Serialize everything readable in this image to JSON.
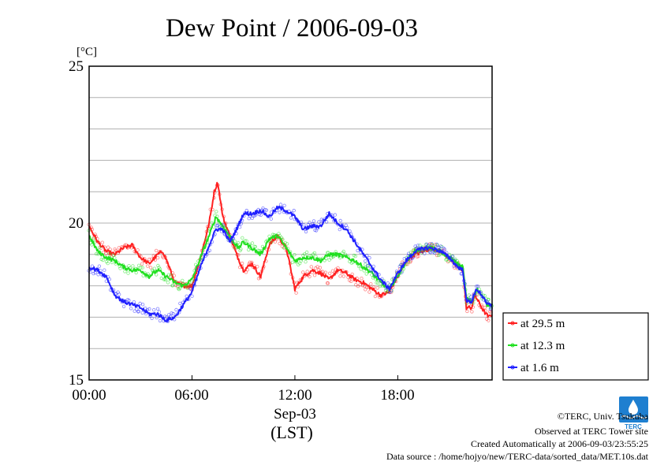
{
  "chart_data": {
    "type": "line",
    "title": "Dew Point / 2006-09-03",
    "unit": "[°C]",
    "y_ticks": [
      "25",
      "20",
      "15"
    ],
    "x_ticks": [
      "00:00",
      "06:00",
      "12:00",
      "18:00"
    ],
    "x_date": "Sep-03",
    "x_zone": "(LST)",
    "ylim": [
      15,
      25
    ],
    "xlim_hours": [
      0,
      23.5
    ],
    "grid": true,
    "legend_position": "right",
    "series": [
      {
        "name": "at 29.5 m",
        "color": "#ff2020",
        "points": [
          [
            0,
            19.9
          ],
          [
            0.5,
            19.4
          ],
          [
            1,
            19.1
          ],
          [
            1.5,
            19.0
          ],
          [
            2,
            19.2
          ],
          [
            2.5,
            19.3
          ],
          [
            3,
            18.9
          ],
          [
            3.5,
            18.7
          ],
          [
            4,
            19.0
          ],
          [
            4.3,
            19.1
          ],
          [
            4.6,
            18.7
          ],
          [
            5,
            18.1
          ],
          [
            5.5,
            18.0
          ],
          [
            6,
            18.0
          ],
          [
            6.5,
            18.9
          ],
          [
            7,
            20.0
          ],
          [
            7.3,
            21.0
          ],
          [
            7.5,
            21.3
          ],
          [
            7.8,
            20.2
          ],
          [
            8.2,
            19.6
          ],
          [
            8.6,
            19.0
          ],
          [
            9,
            18.5
          ],
          [
            9.5,
            18.7
          ],
          [
            10,
            18.3
          ],
          [
            10.5,
            19.3
          ],
          [
            11,
            19.6
          ],
          [
            11.5,
            19.2
          ],
          [
            12,
            17.9
          ],
          [
            12.5,
            18.3
          ],
          [
            13,
            18.5
          ],
          [
            13.5,
            18.4
          ],
          [
            14,
            18.2
          ],
          [
            14.5,
            18.5
          ],
          [
            15,
            18.4
          ],
          [
            15.5,
            18.2
          ],
          [
            16,
            18.1
          ],
          [
            16.5,
            17.9
          ],
          [
            17,
            17.7
          ],
          [
            17.5,
            17.8
          ],
          [
            18,
            18.3
          ],
          [
            18.5,
            18.8
          ],
          [
            19,
            19.0
          ],
          [
            19.5,
            19.1
          ],
          [
            20,
            19.2
          ],
          [
            20.5,
            19.1
          ],
          [
            21,
            18.9
          ],
          [
            21.5,
            18.6
          ],
          [
            21.8,
            18.5
          ],
          [
            22,
            17.3
          ],
          [
            22.3,
            17.3
          ],
          [
            22.5,
            17.7
          ],
          [
            22.8,
            17.4
          ],
          [
            23,
            17.2
          ],
          [
            23.3,
            17.0
          ],
          [
            23.5,
            17.1
          ]
        ]
      },
      {
        "name": "at 12.3 m",
        "color": "#20e020",
        "points": [
          [
            0,
            19.6
          ],
          [
            0.5,
            19.1
          ],
          [
            1,
            18.9
          ],
          [
            1.5,
            18.8
          ],
          [
            2,
            18.6
          ],
          [
            2.5,
            18.5
          ],
          [
            3,
            18.5
          ],
          [
            3.5,
            18.3
          ],
          [
            4,
            18.5
          ],
          [
            4.5,
            18.3
          ],
          [
            5,
            18.1
          ],
          [
            5.5,
            18.0
          ],
          [
            6,
            18.2
          ],
          [
            6.5,
            18.9
          ],
          [
            7,
            19.6
          ],
          [
            7.4,
            20.2
          ],
          [
            7.8,
            19.9
          ],
          [
            8.3,
            19.5
          ],
          [
            8.7,
            19.2
          ],
          [
            9,
            19.4
          ],
          [
            9.5,
            19.2
          ],
          [
            10,
            19.0
          ],
          [
            10.5,
            19.5
          ],
          [
            11,
            19.6
          ],
          [
            11.5,
            19.2
          ],
          [
            12,
            18.8
          ],
          [
            12.5,
            18.9
          ],
          [
            13,
            18.9
          ],
          [
            13.5,
            18.8
          ],
          [
            14,
            19.0
          ],
          [
            14.5,
            19.0
          ],
          [
            15,
            18.9
          ],
          [
            15.5,
            18.8
          ],
          [
            16,
            18.6
          ],
          [
            16.5,
            18.4
          ],
          [
            17,
            18.1
          ],
          [
            17.5,
            17.9
          ],
          [
            18,
            18.3
          ],
          [
            18.5,
            18.8
          ],
          [
            19,
            19.1
          ],
          [
            19.5,
            19.2
          ],
          [
            20,
            19.2
          ],
          [
            20.5,
            19.1
          ],
          [
            21,
            18.9
          ],
          [
            21.5,
            18.7
          ],
          [
            21.8,
            18.6
          ],
          [
            22,
            17.6
          ],
          [
            22.3,
            17.5
          ],
          [
            22.6,
            17.9
          ],
          [
            22.9,
            17.7
          ],
          [
            23.2,
            17.4
          ],
          [
            23.5,
            17.4
          ]
        ]
      },
      {
        "name": "at 1.6 m",
        "color": "#2020ff",
        "points": [
          [
            0,
            18.6
          ],
          [
            0.5,
            18.5
          ],
          [
            1,
            18.3
          ],
          [
            1.5,
            17.7
          ],
          [
            2,
            17.5
          ],
          [
            2.5,
            17.4
          ],
          [
            3,
            17.3
          ],
          [
            3.5,
            17.1
          ],
          [
            4,
            17.1
          ],
          [
            4.5,
            16.9
          ],
          [
            5,
            17.0
          ],
          [
            5.5,
            17.4
          ],
          [
            6,
            17.8
          ],
          [
            6.5,
            18.6
          ],
          [
            7,
            19.3
          ],
          [
            7.4,
            19.8
          ],
          [
            7.8,
            19.8
          ],
          [
            8.2,
            19.4
          ],
          [
            8.6,
            19.8
          ],
          [
            9,
            20.3
          ],
          [
            9.5,
            20.3
          ],
          [
            10,
            20.4
          ],
          [
            10.5,
            20.2
          ],
          [
            11,
            20.5
          ],
          [
            11.5,
            20.4
          ],
          [
            12,
            20.2
          ],
          [
            12.5,
            19.8
          ],
          [
            13,
            19.9
          ],
          [
            13.5,
            19.9
          ],
          [
            14,
            20.3
          ],
          [
            14.5,
            20.0
          ],
          [
            15,
            19.8
          ],
          [
            15.5,
            19.4
          ],
          [
            16,
            19.0
          ],
          [
            16.5,
            18.6
          ],
          [
            17,
            18.2
          ],
          [
            17.5,
            17.9
          ],
          [
            18,
            18.4
          ],
          [
            18.5,
            18.8
          ],
          [
            19,
            19.1
          ],
          [
            19.5,
            19.2
          ],
          [
            20,
            19.2
          ],
          [
            20.5,
            19.1
          ],
          [
            21,
            18.9
          ],
          [
            21.5,
            18.6
          ],
          [
            21.8,
            18.5
          ],
          [
            22,
            17.5
          ],
          [
            22.3,
            17.5
          ],
          [
            22.6,
            17.9
          ],
          [
            22.9,
            17.7
          ],
          [
            23.2,
            17.4
          ],
          [
            23.5,
            17.4
          ]
        ]
      }
    ]
  },
  "footer": {
    "copyright": "©TERC, Univ. Tsukuba",
    "observed": "Observed at TERC Tower site",
    "created": "Created Automatically at 2006-09-03/23:55:25",
    "source": "Data source : /home/hojyo/new/TERC-data/sorted_data/MET.10s.dat"
  },
  "logo": {
    "text": "TERC",
    "color": "#1e7fd0"
  }
}
